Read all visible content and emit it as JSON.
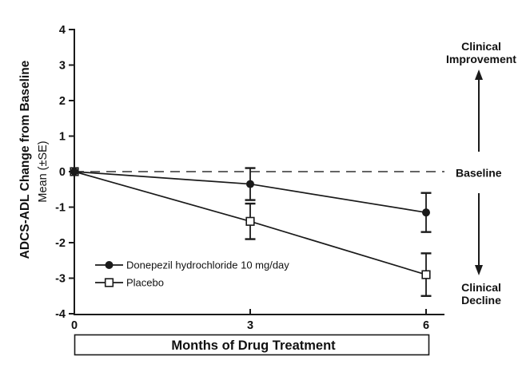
{
  "colors": {
    "line": "#1a1a1a",
    "text": "#111111",
    "dashed_baseline": "#4f4f4f",
    "background": "#ffffff"
  },
  "y_axis": {
    "title": "ADCS-ADL Change from Baseline",
    "subtitle": "Mean (±SE)",
    "tick_labels": [
      "4",
      "3",
      "2",
      "1",
      "0",
      "-1",
      "-2",
      "-3",
      "-4"
    ]
  },
  "x_axis": {
    "label": "Months of Drug Treatment",
    "tick_labels": [
      "0",
      "3",
      "6"
    ]
  },
  "legend": {
    "items": [
      {
        "label": "Donepezil hydrochloride 10 mg/day",
        "marker": "filled-circle"
      },
      {
        "label": "Placebo",
        "marker": "open-square"
      }
    ]
  },
  "annotations": {
    "improvement_line1": "Clinical",
    "improvement_line2": "Improvement",
    "baseline": "Baseline",
    "decline_line1": "Clinical",
    "decline_line2": "Decline"
  },
  "chart_data": {
    "type": "line",
    "x": [
      0,
      3,
      6
    ],
    "xticks": [
      0,
      3,
      6
    ],
    "yticks": [
      4,
      3,
      2,
      1,
      0,
      -1,
      -2,
      -3,
      -4
    ],
    "xlim": [
      0,
      6
    ],
    "ylim": [
      -4,
      4
    ],
    "xlabel": "Months of Drug Treatment",
    "ylabel": "ADCS-ADL Change from Baseline Mean (±SE)",
    "baseline_y": 0,
    "grid": false,
    "legend_position": "lower-left",
    "series": [
      {
        "name": "Donepezil hydrochloride 10 mg/day",
        "marker": "filled-circle",
        "values": [
          0,
          -0.35,
          -1.15
        ],
        "se": [
          0,
          0.45,
          0.55
        ]
      },
      {
        "name": "Placebo",
        "marker": "open-square",
        "values": [
          0,
          -1.4,
          -2.9
        ],
        "se": [
          0,
          0.5,
          0.6
        ]
      }
    ]
  }
}
